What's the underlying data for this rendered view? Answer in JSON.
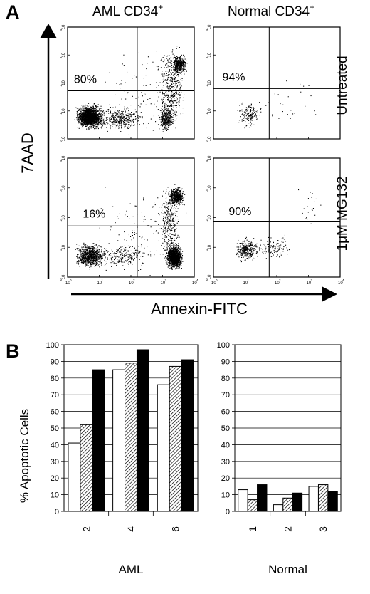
{
  "panel_a": {
    "label": "A",
    "col_headers": [
      "AML CD34",
      "Normal CD34"
    ],
    "col_header_sup": "+",
    "row_labels": [
      "Untreated",
      "1μM MG132"
    ],
    "y_axis_label": "7AAD",
    "x_axis_label": "Annexin-FITC",
    "tick_labels": [
      "10",
      "10",
      "10",
      "10",
      "10"
    ],
    "tick_exponents": [
      "0",
      "1",
      "2",
      "3",
      "4"
    ]
  },
  "panel_b": {
    "label": "B",
    "ylabel": "% Apoptotic Cells"
  },
  "chart_data": [
    {
      "type": "scatter",
      "panel": "A",
      "subplots": [
        {
          "column": "AML CD34+",
          "row": "Untreated",
          "quadrant_label": "80%"
        },
        {
          "column": "Normal CD34+",
          "row": "Untreated",
          "quadrant_label": "94%"
        },
        {
          "column": "AML CD34+",
          "row": "1μM MG132",
          "quadrant_label": "16%"
        },
        {
          "column": "Normal CD34+",
          "row": "1μM MG132",
          "quadrant_label": "90%"
        }
      ],
      "xlabel": "Annexin-FITC",
      "ylabel": "7AAD",
      "xscale": "log",
      "yscale": "log",
      "xlim": [
        1,
        10000
      ],
      "ylim": [
        1,
        10000
      ],
      "xticks": [
        "10^0",
        "10^1",
        "10^2",
        "10^3",
        "10^4"
      ],
      "yticks": [
        "10^0",
        "10^1",
        "10^2",
        "10^3",
        "10^4"
      ]
    },
    {
      "type": "bar",
      "panel": "B",
      "subtitle": "AML",
      "categories": [
        "2",
        "4",
        "6"
      ],
      "series": [
        {
          "fill": "white",
          "values": [
            41,
            85,
            76
          ]
        },
        {
          "fill": "hatched",
          "values": [
            52,
            89,
            87
          ]
        },
        {
          "fill": "black",
          "values": [
            85,
            97,
            91
          ]
        }
      ],
      "xlabel": "AML",
      "ylabel": "% Apoptotic Cells",
      "ylim": [
        0,
        100
      ],
      "yticks": [
        0,
        10,
        20,
        30,
        40,
        50,
        60,
        70,
        80,
        90,
        100
      ],
      "grid": true
    },
    {
      "type": "bar",
      "panel": "B",
      "subtitle": "Normal",
      "categories": [
        "1",
        "2",
        "3"
      ],
      "series": [
        {
          "fill": "white",
          "values": [
            13,
            4,
            15
          ]
        },
        {
          "fill": "hatched",
          "values": [
            7,
            8,
            16
          ]
        },
        {
          "fill": "black",
          "values": [
            16,
            11,
            12
          ]
        }
      ],
      "xlabel": "Normal",
      "ylim": [
        0,
        100
      ],
      "yticks": [
        0,
        10,
        20,
        30,
        40,
        50,
        60,
        70,
        80,
        90,
        100
      ],
      "grid": true
    }
  ]
}
